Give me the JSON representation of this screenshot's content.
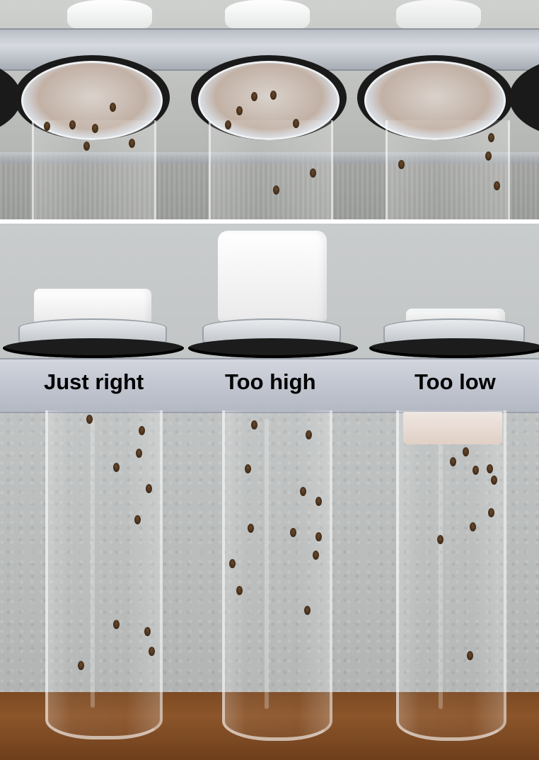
{
  "labels": {
    "left": "Just right",
    "middle": "Too high",
    "right": "Too low"
  }
}
